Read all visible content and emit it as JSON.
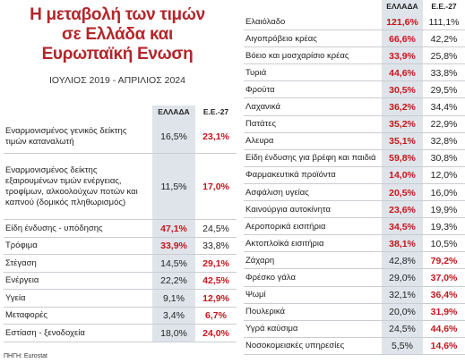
{
  "header": {
    "title": [
      "Η μεταβολή των τιμών",
      "σε Ελλάδα και",
      "Ευρωπαϊκή Ενωση"
    ],
    "subtitle": "ΙΟΥΛΙΟΣ 2019 - ΑΠΡΙΛΙΟΣ 2024"
  },
  "columns": [
    "ΕΛΛΑΔΑ",
    "Ε.Ε.-27"
  ],
  "left_table": {
    "rows": [
      [
        "Εναρμονισμένος γενικός δείκτης τιμών καταναλωτή",
        "16,5%",
        "23,1%"
      ],
      [
        "Εναρμονισμένος δείκτης εξαιρουμένων τιμών ενέργειας, τροφίμων, αλκοολούχων ποτών και καπνού (δομικός πληθωρισμός)",
        "11,5%",
        "17,0%"
      ],
      [
        "Είδη ένδυσης - υπόδησης",
        "47,1%",
        "24,5%"
      ],
      [
        "Τρόφιμα",
        "33,9%",
        "33,8%"
      ],
      [
        "Στέγαση",
        "14,5%",
        "29,1%"
      ],
      [
        "Ενέργεια",
        "22,2%",
        "42,5%"
      ],
      [
        "Υγεία",
        "9,1%",
        "12,9%"
      ],
      [
        "Μεταφορές",
        "3,4%",
        "6,7%"
      ],
      [
        "Εστίαση - ξενοδοχεία",
        "18,0%",
        "24,0%"
      ]
    ]
  },
  "right_table": {
    "rows": [
      [
        "Ελαιόλαδο",
        "121,6%",
        "111,1%"
      ],
      [
        "Αιγοπρόβειο κρέας",
        "66,6%",
        "42,2%"
      ],
      [
        "Βόειο και μοσχαρίσιο κρέας",
        "33,9%",
        "25,8%"
      ],
      [
        "Τυριά",
        "44,6%",
        "33,8%"
      ],
      [
        "Φρούτα",
        "30,5%",
        "29,5%"
      ],
      [
        "Λαχανικά",
        "36,2%",
        "34,4%"
      ],
      [
        "Πατάτες",
        "35,2%",
        "22,9%"
      ],
      [
        "Αλευρα",
        "35,1%",
        "32,8%"
      ],
      [
        "Είδη ένδυσης για βρέφη και παιδιά",
        "59,8%",
        "30,8%"
      ],
      [
        "Φαρμακευτικά προϊόντα",
        "14,0%",
        "12,0%"
      ],
      [
        "Ασφάλιση υγείας",
        "20,5%",
        "16,0%"
      ],
      [
        "Καινούργια αυτοκίνητα",
        "23,6%",
        "19,9%"
      ],
      [
        "Αεροπορικά εισιτήρια",
        "34,5%",
        "19,3%"
      ],
      [
        "Ακτοπλοϊκά εισιτήρια",
        "38,1%",
        "10,5%"
      ],
      [
        "Ζάχαρη",
        "42,8%",
        "79,2%"
      ],
      [
        "Φρέσκο γάλα",
        "29,0%",
        "37,0%"
      ],
      [
        "Ψωμί",
        "32,1%",
        "36,4%"
      ],
      [
        "Πουλερικά",
        "20,0%",
        "31,9%"
      ],
      [
        "Υγρά καύσιμα",
        "24,5%",
        "44,6%"
      ],
      [
        "Νοσοκομειακές υπηρεσίες",
        "5,5%",
        "14,6%"
      ]
    ]
  },
  "source": "ΠΗΓΗ: Eurostat"
}
